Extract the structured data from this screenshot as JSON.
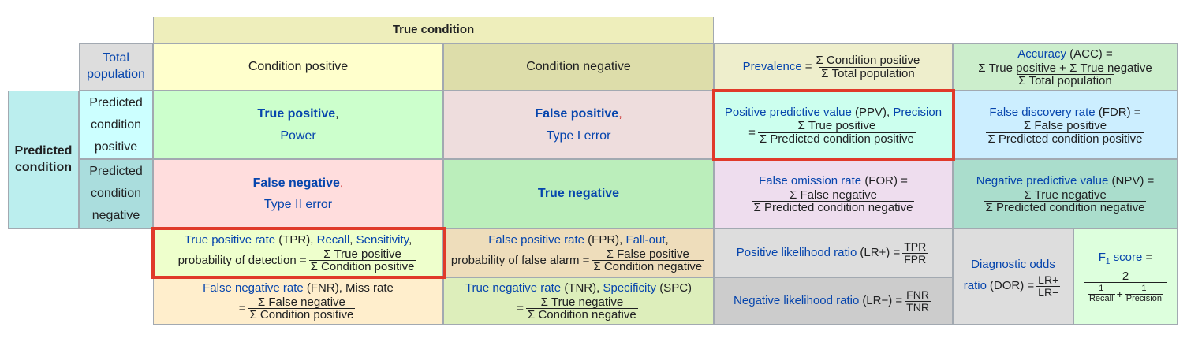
{
  "header": {
    "true_condition": "True condition",
    "total_population": "Total population",
    "condition_positive": "Condition positive",
    "condition_negative": "Condition negative",
    "predicted_condition": "Predicted condition",
    "predicted_condition_positive": "Predicted condition positive",
    "predicted_condition_negative": "Predicted condition negative"
  },
  "cells": {
    "tp": {
      "title": "True positive",
      "comma": ",",
      "sub": "Power"
    },
    "fp": {
      "title": "False positive",
      "comma": ",",
      "sub": "Type I error"
    },
    "fn": {
      "title": "False negative",
      "comma": ",",
      "sub": "Type II error"
    },
    "tn": {
      "title": "True negative"
    }
  },
  "metrics": {
    "prevalence": {
      "label": "Prevalence",
      "eq": "=",
      "num": "Σ Condition positive",
      "den": "Σ Total population"
    },
    "accuracy": {
      "label": "Accuracy",
      "abbr": "(ACC) =",
      "num": "Σ True positive + Σ True negative",
      "den": "Σ Total population"
    },
    "ppv": {
      "label": "Positive predictive value",
      "abbr": "(PPV),",
      "label2": "Precision",
      "eq": "=",
      "num": "Σ True positive",
      "den": "Σ Predicted condition positive"
    },
    "fdr": {
      "label": "False discovery rate",
      "abbr": "(FDR) =",
      "num": "Σ False positive",
      "den": "Σ Predicted condition positive"
    },
    "for": {
      "label": "False omission rate",
      "abbr": "(FOR) =",
      "num": "Σ False negative",
      "den": "Σ Predicted condition negative"
    },
    "npv": {
      "label": "Negative predictive value",
      "abbr": "(NPV) =",
      "num": "Σ True negative",
      "den": "Σ Predicted condition negative"
    },
    "tpr": {
      "label": "True positive rate",
      "abbr": "(TPR),",
      "label2": "Recall",
      "sep": ",",
      "label3": "Sensitivity",
      "tail": ",",
      "line2": "probability of detection =",
      "num": "Σ True positive",
      "den": "Σ Condition positive"
    },
    "fpr": {
      "label": "False positive rate",
      "abbr": "(FPR),",
      "label2": "Fall-out",
      "tail": ",",
      "line2": "probability of false alarm =",
      "num": "Σ False positive",
      "den": "Σ Condition negative"
    },
    "fnr": {
      "label": "False negative rate",
      "abbr": "(FNR), Miss rate",
      "eq": "=",
      "num": "Σ False negative",
      "den": "Σ Condition positive"
    },
    "tnr": {
      "label": "True negative rate",
      "abbr": "(TNR),",
      "label2": "Specificity",
      "abbr2": "(SPC)",
      "eq": "=",
      "num": "Σ True negative",
      "den": "Σ Condition negative"
    },
    "lrp": {
      "label": "Positive likelihood ratio",
      "abbr": "(LR+) =",
      "num": "TPR",
      "den": "FPR"
    },
    "lrn": {
      "label": "Negative likelihood ratio",
      "abbr": "(LR−) =",
      "num": "FNR",
      "den": "TNR"
    },
    "dor": {
      "label": "Diagnostic odds",
      "label_b": "ratio",
      "abbr": "(DOR) =",
      "num": "LR+",
      "den": "LR−"
    },
    "f1": {
      "label": "F",
      "sub": "1",
      "label_b": "score",
      "eq": "=",
      "num": "2",
      "n1": "1",
      "d1": "Recall",
      "plus": "+",
      "n2": "1",
      "d2": "Precision"
    }
  },
  "colors": {
    "true_condition_bg": "#eeeebb",
    "total_population_bg": "#dddddd",
    "condition_positive_bg": "#ffffcc",
    "condition_negative_bg": "#ddddaa",
    "predicted_condition_bg": "#bbeeee",
    "predicted_positive_bg": "#ccffff",
    "predicted_negative_bg": "#aadddd",
    "tp_bg": "#ccffcc",
    "fp_bg": "#eedddd",
    "fn_bg": "#ffdddd",
    "tn_bg": "#bbeebb",
    "highlight": "#e03a2a"
  }
}
